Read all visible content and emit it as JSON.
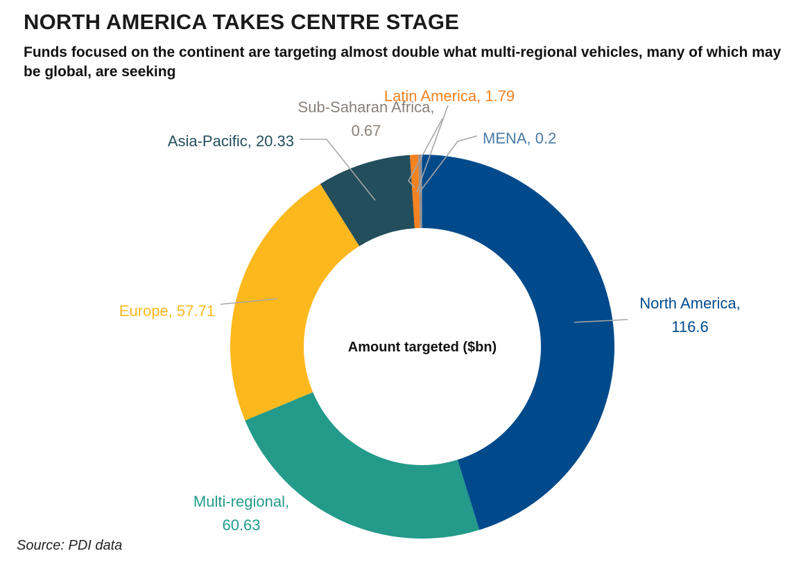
{
  "header": {
    "title": "NORTH AMERICA TAKES CENTRE STAGE",
    "subtitle": "Funds focused on the continent are targeting almost double what multi-regional vehicles, many of which may be global, are seeking"
  },
  "footer": {
    "source": "Source: PDI data"
  },
  "chart_data": {
    "type": "pie",
    "variant": "donut",
    "center_label": "Amount targeted ($bn)",
    "slices": [
      {
        "name": "North America",
        "value": 116.6,
        "color": "#004a8b",
        "label_lines": [
          "North America,",
          "116.6"
        ]
      },
      {
        "name": "Multi-regional",
        "value": 60.63,
        "color": "#239a8a",
        "label_lines": [
          "Multi-regional,",
          "60.63"
        ]
      },
      {
        "name": "Europe",
        "value": 57.71,
        "color": "#fdb81e",
        "label_lines": [
          "Europe, 57.71"
        ]
      },
      {
        "name": "Asia-Pacific",
        "value": 20.33,
        "color": "#234e5c",
        "label_lines": [
          "Asia-Pacific, 20.33"
        ]
      },
      {
        "name": "Latin America",
        "value": 1.79,
        "color": "#f58220",
        "label_lines": [
          "Latin America, 1.79"
        ]
      },
      {
        "name": "Sub-Saharan Africa",
        "value": 0.67,
        "color": "#9b9089",
        "label_lines": [
          "Sub-Saharan Africa,",
          "0.67"
        ]
      },
      {
        "name": "MENA",
        "value": 0.2,
        "color": "#4a7ca8",
        "label_lines": [
          "MENA, 0.2"
        ]
      }
    ],
    "label_colors": {
      "North America": "#004a8b",
      "Multi-regional": "#239a8a",
      "Europe": "#fdb81e",
      "Asia-Pacific": "#234e5c",
      "Latin America": "#f58220",
      "Sub-Saharan Africa": "#8a8079",
      "MENA": "#4a7ca8"
    },
    "legend": "none"
  }
}
